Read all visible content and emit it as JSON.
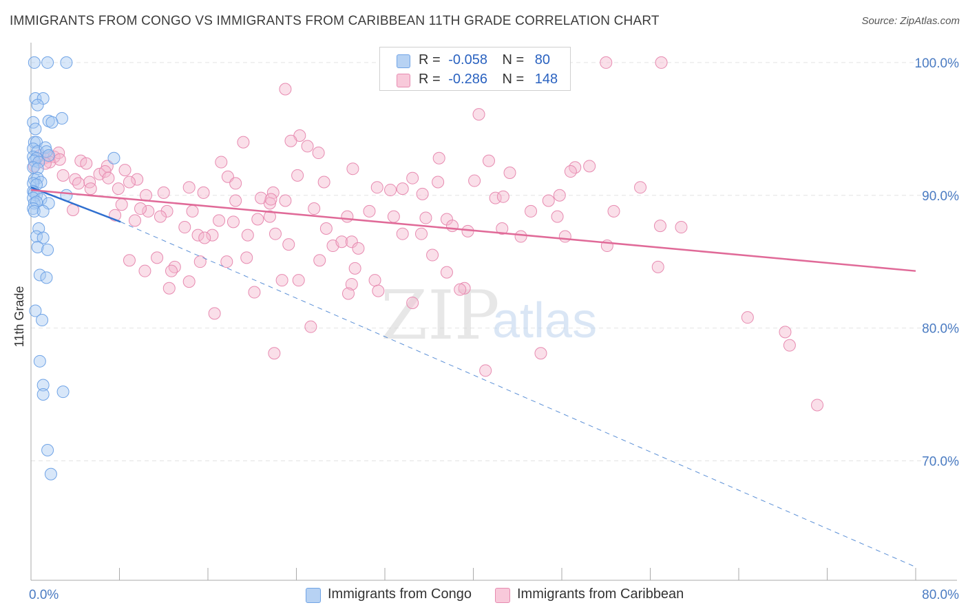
{
  "title": "IMMIGRANTS FROM CONGO VS IMMIGRANTS FROM CARIBBEAN 11TH GRADE CORRELATION CHART",
  "source": "Source: ZipAtlas.com",
  "watermark": {
    "zip": "ZIP",
    "atlas": "atlas"
  },
  "legend": {
    "congo": {
      "r_label": "R =",
      "r_value": "-0.058",
      "n_label": "N =",
      "n_value": "80"
    },
    "caribbean": {
      "r_label": "R =",
      "r_value": "-0.286",
      "n_label": "N =",
      "n_value": "148"
    }
  },
  "chart_data": {
    "type": "scatter",
    "title": "IMMIGRANTS FROM CONGO VS IMMIGRANTS FROM CARIBBEAN 11TH GRADE CORRELATION CHART",
    "xlabel": "",
    "ylabel": "11th Grade",
    "xlim": [
      0,
      80
    ],
    "ylim": [
      61,
      101.5
    ],
    "x_tick_labels": [
      "0.0%",
      "80.0%"
    ],
    "y_ticks": [
      70,
      80,
      90,
      100
    ],
    "y_tick_labels": [
      "70.0%",
      "80.0%",
      "90.0%",
      "100.0%"
    ],
    "legend_position": "top-center",
    "series": [
      {
        "name": "Immigrants from Congo",
        "color": "#6fa3e6",
        "fill": "#a9c9f2",
        "trend": {
          "x0": 0,
          "y0": 90.6,
          "x1": 8.1,
          "y1": 88.0,
          "dashed_to_x": 80,
          "dashed_to_y": 62.0
        },
        "points": [
          [
            0.3,
            100
          ],
          [
            1.5,
            100
          ],
          [
            3.2,
            100
          ],
          [
            0.4,
            97.3
          ],
          [
            1.1,
            97.3
          ],
          [
            0.6,
            96.8
          ],
          [
            2.8,
            95.8
          ],
          [
            0.2,
            95.5
          ],
          [
            1.6,
            95.6
          ],
          [
            1.9,
            95.5
          ],
          [
            0.4,
            95.0
          ],
          [
            0.3,
            94.0
          ],
          [
            0.5,
            94.0
          ],
          [
            0.2,
            93.5
          ],
          [
            0.6,
            93.3
          ],
          [
            1.3,
            93.6
          ],
          [
            1.4,
            93.3
          ],
          [
            0.2,
            92.9
          ],
          [
            0.5,
            92.8
          ],
          [
            1.6,
            93.0
          ],
          [
            0.3,
            92.6
          ],
          [
            0.7,
            92.5
          ],
          [
            7.5,
            92.8
          ],
          [
            0.2,
            92.1
          ],
          [
            0.6,
            92.0
          ],
          [
            0.3,
            91.2
          ],
          [
            0.6,
            91.3
          ],
          [
            0.9,
            91.0
          ],
          [
            0.2,
            90.9
          ],
          [
            0.5,
            90.8
          ],
          [
            0.2,
            90.3
          ],
          [
            0.3,
            90.2
          ],
          [
            0.5,
            90.0
          ],
          [
            3.2,
            90.0
          ],
          [
            0.2,
            89.8
          ],
          [
            0.9,
            89.7
          ],
          [
            0.3,
            89.4
          ],
          [
            0.5,
            89.5
          ],
          [
            1.6,
            89.4
          ],
          [
            0.2,
            89.0
          ],
          [
            0.3,
            88.8
          ],
          [
            1.1,
            88.8
          ],
          [
            0.7,
            87.5
          ],
          [
            0.5,
            86.9
          ],
          [
            1.1,
            86.8
          ],
          [
            0.6,
            86.1
          ],
          [
            1.5,
            85.9
          ],
          [
            0.8,
            84.0
          ],
          [
            1.4,
            83.8
          ],
          [
            0.4,
            81.3
          ],
          [
            1.0,
            80.6
          ],
          [
            0.8,
            77.5
          ],
          [
            1.1,
            75.7
          ],
          [
            1.1,
            75.0
          ],
          [
            2.9,
            75.2
          ],
          [
            1.5,
            70.8
          ],
          [
            1.8,
            69.0
          ]
        ]
      },
      {
        "name": "Immigrants from Caribbean",
        "color": "#e78ab0",
        "fill": "#f4b8cf",
        "trend": {
          "x0": 0,
          "y0": 90.4,
          "x1": 80,
          "y1": 84.3
        },
        "points": [
          [
            52.0,
            100
          ],
          [
            57.0,
            100
          ],
          [
            23.0,
            98.0
          ],
          [
            40.5,
            96.1
          ],
          [
            24.3,
            94.5
          ],
          [
            19.2,
            94.0
          ],
          [
            23.5,
            94.1
          ],
          [
            25.0,
            93.7
          ],
          [
            26.0,
            93.2
          ],
          [
            0.8,
            93.0
          ],
          [
            1.6,
            92.9
          ],
          [
            1.2,
            92.8
          ],
          [
            2.1,
            92.9
          ],
          [
            2.5,
            93.2
          ],
          [
            1.7,
            92.5
          ],
          [
            1.3,
            92.4
          ],
          [
            2.6,
            92.7
          ],
          [
            4.5,
            92.6
          ],
          [
            5.0,
            92.4
          ],
          [
            6.9,
            92.2
          ],
          [
            0.3,
            92.2
          ],
          [
            17.2,
            92.5
          ],
          [
            36.9,
            92.8
          ],
          [
            41.4,
            92.6
          ],
          [
            29.1,
            92.0
          ],
          [
            49.2,
            92.1
          ],
          [
            50.5,
            92.2
          ],
          [
            2.9,
            91.5
          ],
          [
            4.0,
            91.2
          ],
          [
            5.3,
            91.0
          ],
          [
            6.2,
            91.6
          ],
          [
            6.7,
            91.8
          ],
          [
            7.0,
            91.3
          ],
          [
            8.5,
            91.9
          ],
          [
            9.6,
            91.2
          ],
          [
            17.8,
            91.4
          ],
          [
            24.1,
            91.5
          ],
          [
            26.5,
            91.0
          ],
          [
            34.5,
            91.3
          ],
          [
            36.8,
            91.0
          ],
          [
            40.1,
            91.1
          ],
          [
            43.3,
            91.7
          ],
          [
            48.8,
            91.8
          ],
          [
            4.3,
            90.9
          ],
          [
            5.4,
            90.5
          ],
          [
            7.9,
            90.5
          ],
          [
            8.9,
            91.0
          ],
          [
            14.3,
            90.6
          ],
          [
            15.6,
            90.2
          ],
          [
            18.5,
            90.9
          ],
          [
            21.9,
            90.2
          ],
          [
            31.3,
            90.6
          ],
          [
            32.5,
            90.4
          ],
          [
            33.6,
            90.5
          ],
          [
            35.4,
            90.1
          ],
          [
            47.8,
            90.0
          ],
          [
            55.1,
            90.6
          ],
          [
            10.4,
            90.0
          ],
          [
            12.0,
            90.2
          ],
          [
            18.5,
            89.6
          ],
          [
            20.8,
            89.8
          ],
          [
            23.0,
            89.6
          ],
          [
            21.6,
            89.4
          ],
          [
            21.7,
            89.7
          ],
          [
            42.0,
            89.8
          ],
          [
            42.7,
            89.9
          ],
          [
            46.8,
            89.6
          ],
          [
            3.8,
            88.9
          ],
          [
            10.6,
            88.8
          ],
          [
            9.9,
            89.0
          ],
          [
            12.3,
            88.8
          ],
          [
            14.6,
            88.8
          ],
          [
            25.6,
            89.0
          ],
          [
            28.6,
            88.4
          ],
          [
            30.6,
            88.8
          ],
          [
            32.8,
            88.4
          ],
          [
            35.7,
            88.3
          ],
          [
            37.6,
            88.2
          ],
          [
            45.2,
            88.8
          ],
          [
            47.6,
            88.4
          ],
          [
            52.7,
            88.8
          ],
          [
            7.6,
            88.5
          ],
          [
            8.2,
            89.3
          ],
          [
            9.4,
            88.1
          ],
          [
            11.7,
            88.4
          ],
          [
            13.9,
            87.6
          ],
          [
            17.0,
            88.1
          ],
          [
            18.3,
            88.0
          ],
          [
            20.5,
            88.2
          ],
          [
            21.6,
            88.4
          ],
          [
            26.7,
            87.5
          ],
          [
            42.6,
            87.5
          ],
          [
            56.9,
            87.7
          ],
          [
            58.8,
            87.6
          ],
          [
            38.1,
            87.7
          ],
          [
            39.5,
            87.3
          ],
          [
            15.1,
            87.0
          ],
          [
            16.4,
            87.0
          ],
          [
            15.7,
            86.8
          ],
          [
            19.6,
            87.0
          ],
          [
            22.1,
            87.1
          ],
          [
            33.6,
            87.1
          ],
          [
            35.3,
            87.1
          ],
          [
            44.3,
            86.9
          ],
          [
            48.3,
            86.9
          ],
          [
            23.3,
            86.3
          ],
          [
            27.3,
            86.2
          ],
          [
            28.1,
            86.5
          ],
          [
            29.0,
            86.5
          ],
          [
            29.6,
            86.0
          ],
          [
            36.3,
            85.5
          ],
          [
            52.1,
            86.2
          ],
          [
            8.9,
            85.1
          ],
          [
            11.4,
            85.3
          ],
          [
            13.0,
            84.6
          ],
          [
            15.3,
            85.0
          ],
          [
            17.7,
            85.0
          ],
          [
            19.5,
            85.3
          ],
          [
            26.1,
            85.1
          ],
          [
            29.3,
            84.5
          ],
          [
            10.3,
            84.3
          ],
          [
            12.7,
            84.3
          ],
          [
            14.3,
            83.5
          ],
          [
            22.7,
            83.6
          ],
          [
            24.2,
            83.6
          ],
          [
            29.0,
            83.3
          ],
          [
            31.1,
            83.6
          ],
          [
            37.6,
            84.2
          ],
          [
            39.2,
            83.0
          ],
          [
            56.7,
            84.6
          ],
          [
            12.5,
            83.0
          ],
          [
            20.2,
            82.7
          ],
          [
            28.7,
            82.6
          ],
          [
            31.4,
            82.8
          ],
          [
            38.8,
            82.9
          ],
          [
            34.5,
            81.9
          ],
          [
            16.6,
            81.1
          ],
          [
            64.8,
            80.8
          ],
          [
            25.3,
            80.1
          ],
          [
            68.2,
            79.7
          ],
          [
            68.6,
            78.7
          ],
          [
            22.0,
            78.1
          ],
          [
            46.1,
            78.1
          ],
          [
            41.1,
            76.8
          ],
          [
            71.1,
            74.2
          ]
        ]
      }
    ]
  },
  "legend_bottom": {
    "congo": "Immigrants from Congo",
    "caribbean": "Immigrants from Caribbean"
  }
}
